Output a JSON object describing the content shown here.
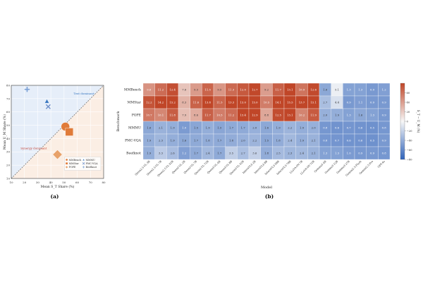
{
  "panel_a": {
    "caption": "(a)",
    "annotations": {
      "text": "Text dominant",
      "synergy": "Synergy dominant"
    }
  },
  "panel_b": {
    "caption": "(b)",
    "colorbar_label": "S_T − U_M (%)"
  },
  "colors": {
    "orange": "#e07b39",
    "blue": "#3a78c1",
    "diag_orange": "#c0392b"
  },
  "chart_data": [
    {
      "type": "scatter",
      "xlabel": "Mean S_T Share (%)",
      "ylabel": "Mean U_M Share (%)",
      "xlim": [
        10,
        80
      ],
      "ylim": [
        10,
        80
      ],
      "xticks": [
        10,
        20,
        30,
        40,
        50,
        60,
        70,
        80
      ],
      "yticks": [
        10,
        20,
        30,
        40,
        50,
        60,
        70,
        80
      ],
      "grid": true,
      "legend_position": "bottom-right",
      "series": [
        {
          "name": "MMBench",
          "marker": "circle",
          "color": "#e07b39",
          "x": 51,
          "y": 49
        },
        {
          "name": "MMStar",
          "marker": "square",
          "color": "#e07b39",
          "x": 54,
          "y": 45
        },
        {
          "name": "POPE",
          "marker": "diamond",
          "color": "#e8a26a",
          "x": 45,
          "y": 28
        },
        {
          "name": "MMMU",
          "marker": "triangle",
          "color": "#3a78c1",
          "x": 37,
          "y": 68
        },
        {
          "name": "PMC-VQA",
          "marker": "x",
          "color": "#6e8fc9",
          "x": 38,
          "y": 64
        },
        {
          "name": "Beefknot",
          "marker": "plus",
          "color": "#7aa0d6",
          "x": 22,
          "y": 77
        }
      ]
    },
    {
      "type": "heatmap",
      "xlabel": "Model",
      "ylabel": "Benchmark",
      "rows": [
        "MMBench",
        "MMStar",
        "POPE",
        "MMMU",
        "PMC-VQA",
        "Beefknot"
      ],
      "columns": [
        "Qwen2.5-VL-3B",
        "Qwen2.5-VL-7B",
        "Qwen2.5-VL-32B",
        "Qwen2-VL-2B",
        "Qwen2-VL-7B",
        "Qwen2-VL-72B",
        "Qwen3-VL-4B",
        "Qwen3-VL-8B",
        "Qwen3-VL-32B",
        "InternVL3-2B",
        "InternVL3-8B",
        "InternVL3-38B",
        "InternVL3-78B",
        "LLaVA-OV-7B",
        "LLaVA-OV-72B",
        "Gemma3-4B",
        "Gemma3-12B",
        "Gemma3-27B",
        "Gemini2.5-Flash",
        "Gemini2.5-Pro",
        "GPT-4o"
      ],
      "values": [
        [
          9.6,
          11.2,
          12.4,
          7.6,
          9.3,
          11.5,
          9.5,
          11.3,
          12.0,
          12.7,
          9.2,
          11.7,
          13.1,
          10.9,
          12.6,
          1.6,
          5.1,
          1.3,
          1.3,
          0.9,
          1.2
        ],
        [
          12.2,
          14.2,
          15.2,
          8.3,
          11.6,
          13.8,
          11.5,
          13.3,
          13.0,
          15.0,
          10.5,
          14.1,
          15.5,
          13.7,
          15.1,
          2.7,
          4.4,
          0.9,
          1.1,
          0.9,
          0.9
        ],
        [
          10.7,
          10.1,
          11.8,
          7.9,
          8.6,
          11.7,
          10.5,
          11.2,
          13.4,
          12.9,
          8.8,
          12.5,
          13.1,
          10.2,
          11.9,
          2.0,
          1.9,
          1.3,
          1.6,
          1.3,
          0.9
        ],
        [
          1.6,
          2.1,
          1.9,
          1.0,
          1.5,
          1.9,
          1.5,
          1.7,
          1.7,
          2.0,
          1.6,
          1.9,
          2.2,
          1.9,
          2.0,
          0.8,
          0.6,
          0.7,
          0.6,
          0.5,
          0.8
        ],
        [
          1.9,
          2.3,
          1.9,
          1.6,
          1.7,
          1.8,
          1.7,
          1.8,
          2.0,
          2.2,
          1.5,
          1.8,
          2.4,
          1.9,
          2.1,
          0.8,
          0.7,
          0.6,
          0.6,
          0.5,
          0.9
        ],
        [
          1.9,
          3.3,
          2.6,
          1.2,
          1.7,
          2.4,
          1.7,
          3.5,
          2.7,
          3.6,
          1.8,
          2.5,
          2.3,
          2.4,
          2.1,
          1.3,
          1.3,
          1.0,
          0.9,
          0.9,
          0.8
        ]
      ],
      "colorbar": {
        "min": -80,
        "max": 80,
        "ticks": [
          60,
          40,
          20,
          0,
          -20,
          -40,
          -60,
          -80
        ]
      }
    }
  ]
}
